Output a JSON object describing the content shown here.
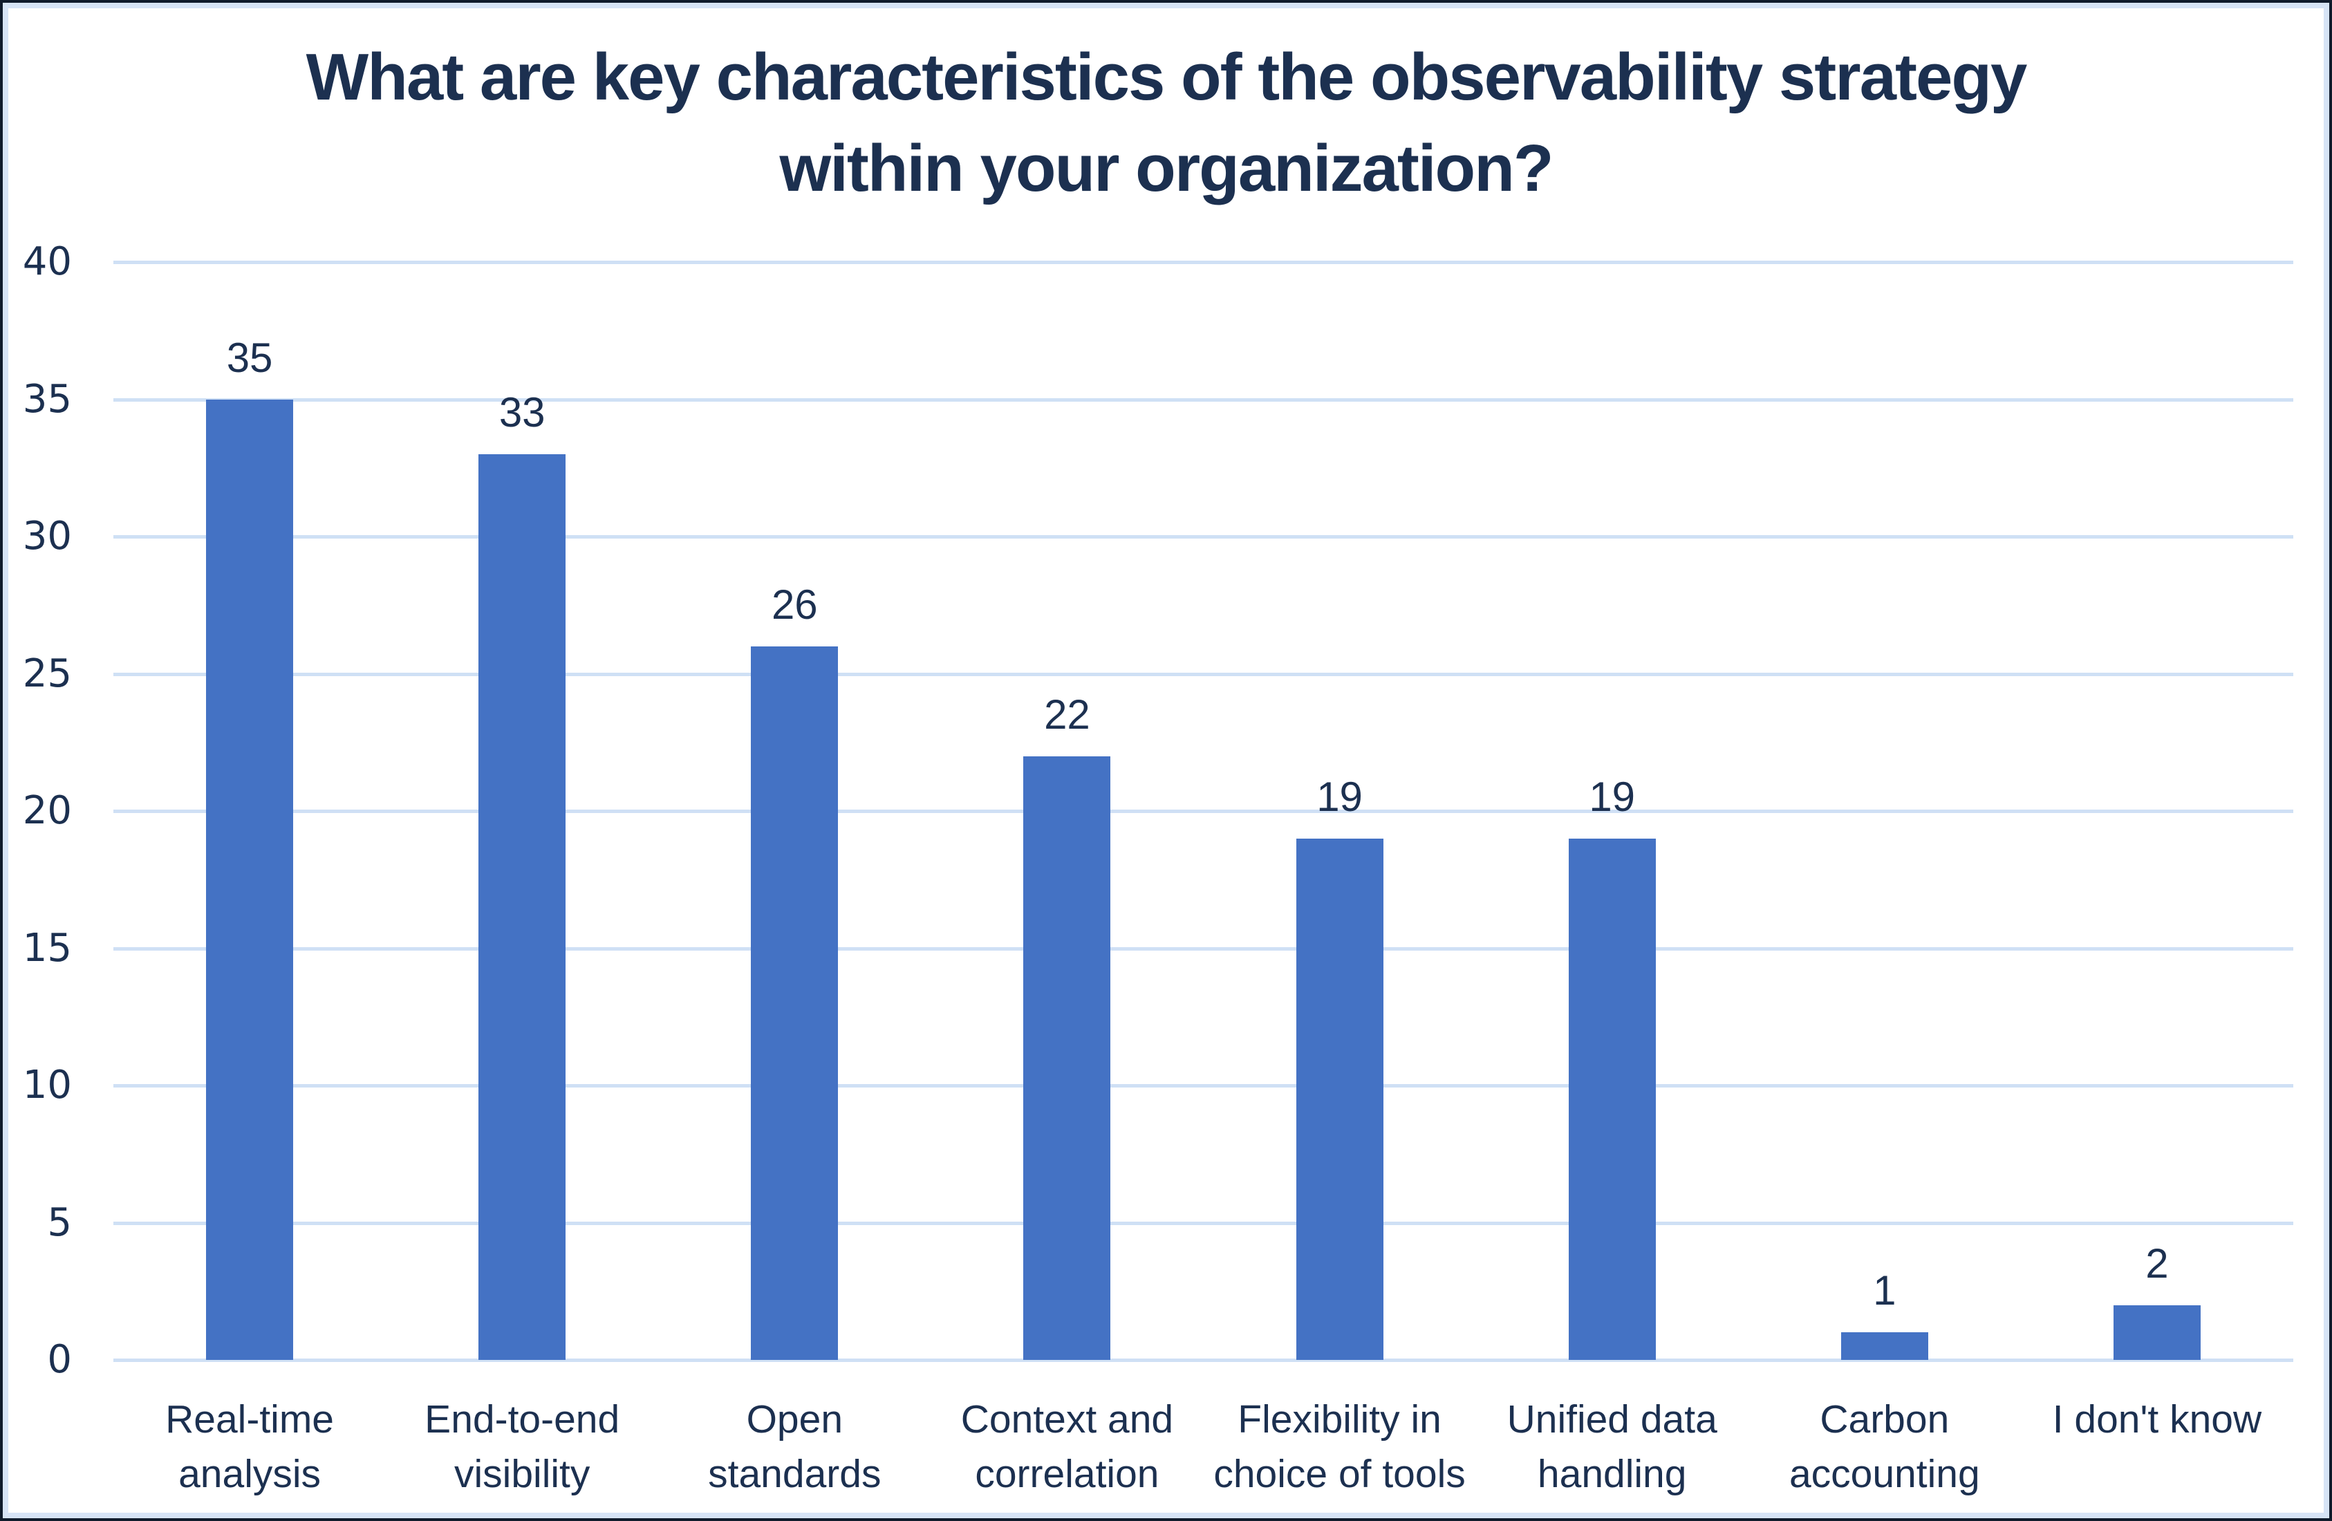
{
  "chart_data": {
    "type": "bar",
    "title": "What are key characteristics of the observability strategy within your organization?",
    "title_lines": [
      "What are key characteristics of the observability strategy",
      "within your organization?"
    ],
    "categories": [
      "Real-time analysis",
      "End-to-end visibility",
      "Open standards",
      "Context and correlation",
      "Flexibility in choice of tools",
      "Unified data handling",
      "Carbon accounting",
      "I don't know"
    ],
    "category_lines": [
      [
        "Real-time",
        "analysis"
      ],
      [
        "End-to-end",
        "visibility"
      ],
      [
        "Open",
        "standards"
      ],
      [
        "Context and",
        "correlation"
      ],
      [
        "Flexibility in",
        "choice of tools"
      ],
      [
        "Unified data",
        "handling"
      ],
      [
        "Carbon",
        "accounting"
      ],
      [
        "I don't know"
      ]
    ],
    "values": [
      35,
      33,
      26,
      22,
      19,
      19,
      1,
      2
    ],
    "xlabel": "",
    "ylabel": "",
    "ylim": [
      0,
      40
    ],
    "yticks": [
      40,
      35,
      30,
      25,
      20,
      15,
      10,
      5,
      0
    ],
    "grid": "on",
    "legend": "none",
    "colors": {
      "bar": "#4472C4",
      "text": "#1C3050",
      "gridline": "#CFE0F5",
      "frame_inner": "#D6E4F6",
      "frame_outer": "#101C2C",
      "background": "#FFFFFF"
    }
  }
}
